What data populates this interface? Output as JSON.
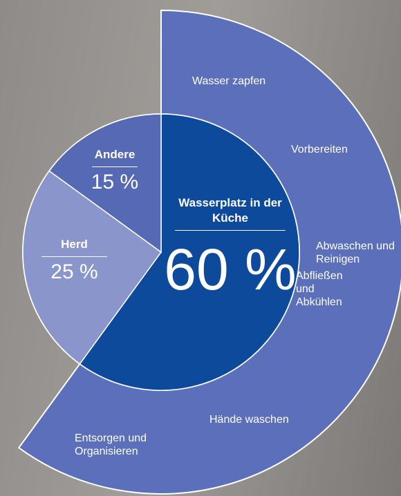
{
  "chart_data": {
    "type": "pie",
    "categories": [
      "Wasserplatz in der Küche",
      "Herd",
      "Andere"
    ],
    "values": [
      60,
      25,
      15
    ],
    "value_labels": [
      "60 %",
      "25 %",
      "15 %"
    ],
    "colors": [
      "#0e4a9c",
      "#8a95cb",
      "#5669b4"
    ],
    "ring_color": "#5b6fba",
    "annotations": [
      "Wasser zapfen",
      "Vorbereiten",
      "Abwaschen und Reinigen",
      "Abfließen und Abkühlen",
      "Hände waschen",
      "Entsorgen und Organisieren"
    ]
  }
}
